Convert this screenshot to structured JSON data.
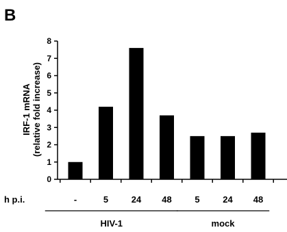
{
  "panel_label": "B",
  "chart_data": {
    "type": "bar",
    "ylabel_line1": "IRF-1 mRNA",
    "ylabel_line2": "(relative fold increase)",
    "row_label": "h p.i.",
    "ylim": [
      0,
      8
    ],
    "yticks": [
      "0",
      "1",
      "2",
      "3",
      "4",
      "5",
      "6",
      "7",
      "8"
    ],
    "categories": [
      "-",
      "5",
      "24",
      "48",
      "5",
      "24",
      "48"
    ],
    "values": [
      1.0,
      4.2,
      7.6,
      3.7,
      2.5,
      2.5,
      2.7
    ],
    "groups": [
      {
        "name": "HIV-1",
        "span": [
          0,
          3
        ]
      },
      {
        "name": "mock",
        "span": [
          4,
          6
        ]
      }
    ],
    "bar_color": "#000000",
    "grid": false
  }
}
